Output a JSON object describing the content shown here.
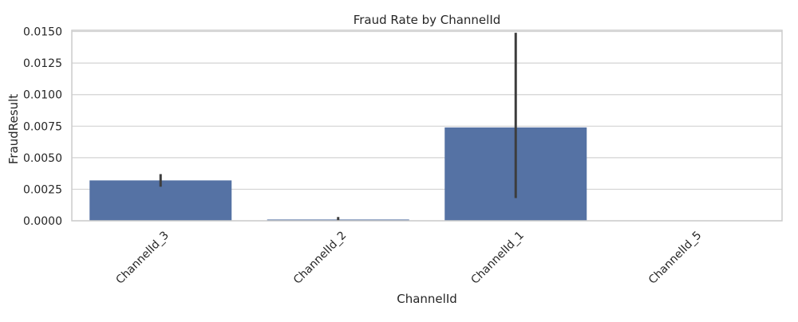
{
  "chart_data": {
    "type": "bar",
    "title": "Fraud Rate by ChannelId",
    "xlabel": "ChannelId",
    "ylabel": "FraudResult",
    "categories": [
      "ChannelId_3",
      "ChannelId_2",
      "ChannelId_1",
      "ChannelId_5"
    ],
    "values": [
      0.0032,
      0.0001,
      0.0074,
      0.0
    ],
    "error_low": [
      0.0027,
      0.0,
      0.0018,
      0.0
    ],
    "error_high": [
      0.0037,
      0.0003,
      0.0149,
      0.0
    ],
    "ylim": [
      0,
      0.0151
    ],
    "yticks": [
      0.0,
      0.0025,
      0.005,
      0.0075,
      0.01,
      0.0125,
      0.015
    ],
    "ytick_labels": [
      "0.0000",
      "0.0025",
      "0.0050",
      "0.0075",
      "0.0100",
      "0.0125",
      "0.0150"
    ],
    "grid": true,
    "colors": {
      "bar": "#5572a4",
      "error": "#3d3d3d",
      "grid": "#d3d3d3",
      "spine": "#cccccc",
      "text": "#262626"
    }
  }
}
